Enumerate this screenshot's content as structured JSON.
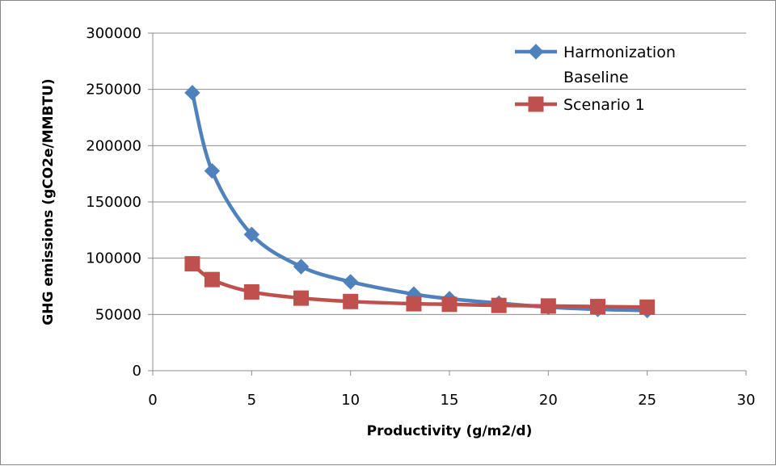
{
  "chart_data": {
    "type": "line",
    "title": "",
    "xlabel": "Productivity (g/m2/d)",
    "ylabel": "GHG emissions (gCO2e/MMBTU)",
    "xlim": [
      0,
      30
    ],
    "ylim": [
      0,
      300000
    ],
    "xticks": [
      "0",
      "5",
      "10",
      "15",
      "20",
      "25",
      "30"
    ],
    "yticks": [
      "0",
      "50000",
      "100000",
      "150000",
      "200000",
      "250000",
      "300000"
    ],
    "grid": "horizontal",
    "legend_position": "top-right",
    "series": [
      {
        "name": "Harmonization Baseline",
        "color": "#4f81bd",
        "marker": "diamond",
        "smooth": true,
        "x": [
          2,
          3,
          5,
          7.5,
          10,
          13.2,
          15,
          17.5,
          20,
          22.5,
          25
        ],
        "y": [
          247000,
          177500,
          121000,
          92500,
          79000,
          68000,
          64000,
          60000,
          56500,
          54500,
          53500
        ]
      },
      {
        "name": "Scenario 1",
        "color": "#c0504d",
        "marker": "square",
        "smooth": true,
        "x": [
          2,
          3,
          5,
          7.5,
          10,
          13.2,
          15,
          17.5,
          20,
          22.5,
          25
        ],
        "y": [
          95000,
          81000,
          70000,
          64500,
          61500,
          59500,
          59000,
          58000,
          57500,
          57000,
          56500
        ]
      }
    ]
  }
}
